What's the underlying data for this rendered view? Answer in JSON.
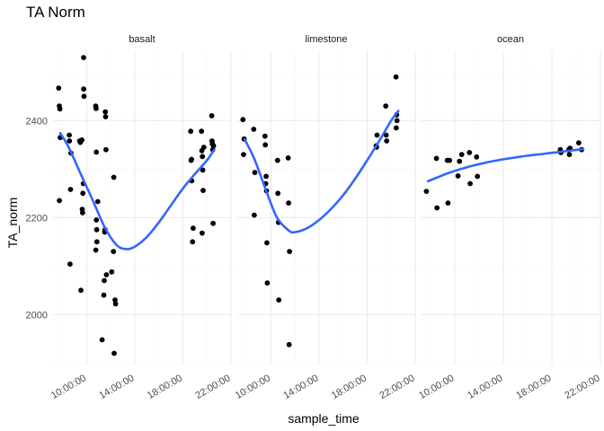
{
  "chart_data": {
    "type": "scatter",
    "title": "TA Norm",
    "xlabel": "sample_time",
    "ylabel": "TA_norm",
    "x_ticks": [
      "10:00:00",
      "14:00:00",
      "18:00:00",
      "22:00:00"
    ],
    "x_tick_hours": [
      10,
      14,
      18,
      22
    ],
    "x_range_hours": [
      7.2,
      22.0
    ],
    "y_ticks": [
      "2000",
      "2200",
      "2400"
    ],
    "y_tick_values": [
      2000,
      2200,
      2400
    ],
    "ylim": [
      1895,
      2545
    ],
    "grid": true,
    "smooth_color": "#3366FF",
    "point_color": "#000000",
    "facets": [
      {
        "label": "basalt",
        "points": [
          [
            7.67,
            2467
          ],
          [
            7.72,
            2430
          ],
          [
            7.77,
            2424
          ],
          [
            7.8,
            2365
          ],
          [
            7.73,
            2235
          ],
          [
            8.55,
            2370
          ],
          [
            8.57,
            2358
          ],
          [
            8.61,
            2104
          ],
          [
            8.66,
            2258
          ],
          [
            8.69,
            2333
          ],
          [
            9.41,
            2358
          ],
          [
            9.47,
            2355
          ],
          [
            9.52,
            2050
          ],
          [
            9.6,
            2360
          ],
          [
            9.63,
            2217
          ],
          [
            9.66,
            2210
          ],
          [
            9.68,
            2250
          ],
          [
            9.72,
            2270
          ],
          [
            9.75,
            2465
          ],
          [
            9.78,
            2450
          ],
          [
            9.74,
            2530
          ],
          [
            10.75,
            2430
          ],
          [
            10.78,
            2425
          ],
          [
            10.76,
            2133
          ],
          [
            10.8,
            2335
          ],
          [
            10.8,
            2195
          ],
          [
            10.83,
            2175
          ],
          [
            10.85,
            2150
          ],
          [
            10.92,
            2233
          ],
          [
            11.28,
            1948
          ],
          [
            11.42,
            2040
          ],
          [
            11.46,
            2070
          ],
          [
            11.5,
            2170
          ],
          [
            11.53,
            2175
          ],
          [
            11.55,
            2418
          ],
          [
            11.57,
            2408
          ],
          [
            11.6,
            2340
          ],
          [
            11.64,
            2082
          ],
          [
            12.08,
            2088
          ],
          [
            12.22,
            2130
          ],
          [
            12.25,
            2283
          ],
          [
            12.28,
            1920
          ],
          [
            12.36,
            2030
          ],
          [
            12.4,
            2022
          ],
          [
            18.65,
            2378
          ],
          [
            18.68,
            2318
          ],
          [
            18.72,
            2320
          ],
          [
            18.73,
            2276
          ],
          [
            18.8,
            2150
          ],
          [
            18.85,
            2178
          ],
          [
            19.55,
            2378
          ],
          [
            19.58,
            2338
          ],
          [
            19.62,
            2326
          ],
          [
            19.65,
            2298
          ],
          [
            19.68,
            2256
          ],
          [
            19.6,
            2168
          ],
          [
            19.74,
            2345
          ],
          [
            20.4,
            2410
          ],
          [
            20.42,
            2358
          ],
          [
            20.45,
            2352
          ],
          [
            20.48,
            2340
          ],
          [
            20.55,
            2348
          ],
          [
            20.51,
            2188
          ]
        ],
        "smooth": [
          [
            7.8,
            2374
          ],
          [
            8.5,
            2345
          ],
          [
            9.5,
            2290
          ],
          [
            10.5,
            2236
          ],
          [
            11.5,
            2180
          ],
          [
            12.5,
            2143
          ],
          [
            13.3,
            2135
          ],
          [
            14.0,
            2140
          ],
          [
            15.0,
            2160
          ],
          [
            16.0,
            2190
          ],
          [
            17.0,
            2225
          ],
          [
            18.0,
            2260
          ],
          [
            19.0,
            2290
          ],
          [
            20.0,
            2318
          ],
          [
            20.6,
            2340
          ]
        ]
      },
      {
        "label": "limestone",
        "points": [
          [
            7.67,
            2402
          ],
          [
            7.72,
            2330
          ],
          [
            7.77,
            2362
          ],
          [
            8.57,
            2382
          ],
          [
            8.61,
            2205
          ],
          [
            8.66,
            2293
          ],
          [
            9.5,
            2368
          ],
          [
            9.53,
            2350
          ],
          [
            9.56,
            2270
          ],
          [
            9.6,
            2285
          ],
          [
            9.63,
            2255
          ],
          [
            9.66,
            2148
          ],
          [
            9.7,
            2065
          ],
          [
            10.55,
            2318
          ],
          [
            10.58,
            2250
          ],
          [
            10.62,
            2190
          ],
          [
            10.65,
            2030
          ],
          [
            11.43,
            2323
          ],
          [
            11.47,
            2230
          ],
          [
            11.54,
            2130
          ],
          [
            11.51,
            1938
          ],
          [
            18.75,
            2348
          ],
          [
            18.78,
            2345
          ],
          [
            18.82,
            2370
          ],
          [
            19.55,
            2430
          ],
          [
            19.58,
            2370
          ],
          [
            19.62,
            2358
          ],
          [
            20.4,
            2490
          ],
          [
            20.45,
            2412
          ],
          [
            20.48,
            2400
          ],
          [
            20.42,
            2385
          ]
        ],
        "smooth": [
          [
            7.8,
            2362
          ],
          [
            8.6,
            2322
          ],
          [
            9.5,
            2262
          ],
          [
            10.5,
            2200
          ],
          [
            11.5,
            2173
          ],
          [
            12.0,
            2170
          ],
          [
            13.0,
            2178
          ],
          [
            14.0,
            2195
          ],
          [
            15.0,
            2218
          ],
          [
            16.0,
            2246
          ],
          [
            17.0,
            2280
          ],
          [
            18.0,
            2318
          ],
          [
            19.0,
            2358
          ],
          [
            20.0,
            2400
          ],
          [
            20.6,
            2420
          ]
        ]
      },
      {
        "label": "ocean",
        "points": [
          [
            7.67,
            2254
          ],
          [
            8.5,
            2322
          ],
          [
            8.55,
            2220
          ],
          [
            9.4,
            2318
          ],
          [
            9.45,
            2230
          ],
          [
            9.58,
            2318
          ],
          [
            10.28,
            2286
          ],
          [
            10.4,
            2316
          ],
          [
            10.58,
            2330
          ],
          [
            11.22,
            2334
          ],
          [
            11.28,
            2270
          ],
          [
            11.8,
            2325
          ],
          [
            11.88,
            2285
          ],
          [
            18.7,
            2340
          ],
          [
            18.75,
            2334
          ],
          [
            19.4,
            2340
          ],
          [
            19.45,
            2330
          ],
          [
            19.5,
            2343
          ],
          [
            20.22,
            2354
          ],
          [
            20.45,
            2340
          ]
        ],
        "smooth": [
          [
            7.8,
            2275
          ],
          [
            8.5,
            2282
          ],
          [
            9.5,
            2292
          ],
          [
            10.5,
            2300
          ],
          [
            11.5,
            2307
          ],
          [
            12.5,
            2313
          ],
          [
            13.5,
            2318
          ],
          [
            14.5,
            2322
          ],
          [
            15.5,
            2326
          ],
          [
            16.5,
            2329
          ],
          [
            17.5,
            2332
          ],
          [
            18.5,
            2335
          ],
          [
            19.5,
            2338
          ],
          [
            20.6,
            2341
          ]
        ]
      }
    ]
  }
}
